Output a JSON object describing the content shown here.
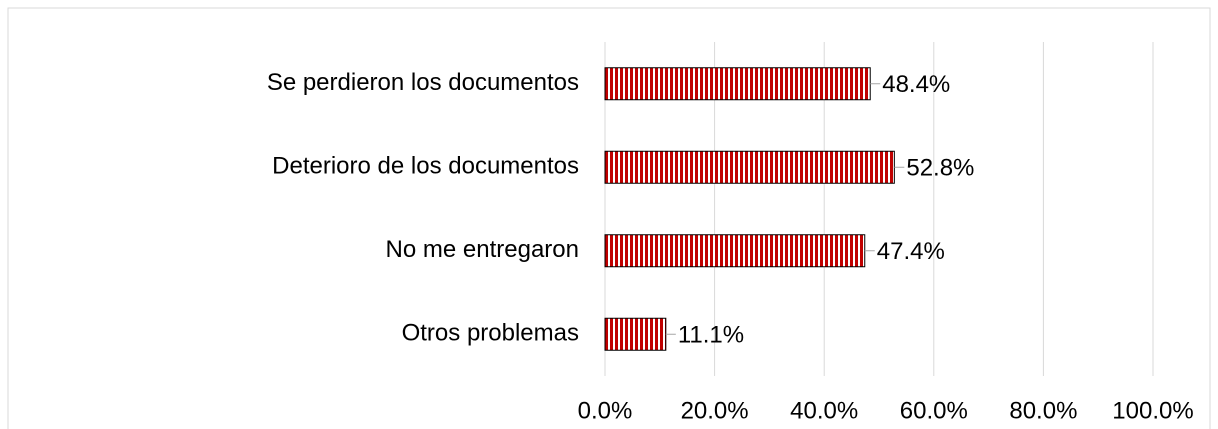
{
  "chart_data": {
    "type": "bar",
    "orientation": "horizontal",
    "categories": [
      "Se perdieron los documentos",
      "Deterioro de los documentos",
      "No me entregaron",
      "Otros problemas"
    ],
    "values": [
      48.4,
      52.8,
      47.4,
      11.1
    ],
    "value_labels": [
      "48.4%",
      "52.8%",
      "47.4%",
      "11.1%"
    ],
    "color": "#c00000",
    "xlim": [
      0,
      100
    ],
    "xticks": [
      {
        "value": 0,
        "label": "0.0%"
      },
      {
        "value": 20,
        "label": "20.0%"
      },
      {
        "value": 40,
        "label": "40.0%"
      },
      {
        "value": 60,
        "label": "60.0%"
      },
      {
        "value": 80,
        "label": "80.0%"
      },
      {
        "value": 100,
        "label": "100.0%"
      }
    ],
    "grid": true
  }
}
